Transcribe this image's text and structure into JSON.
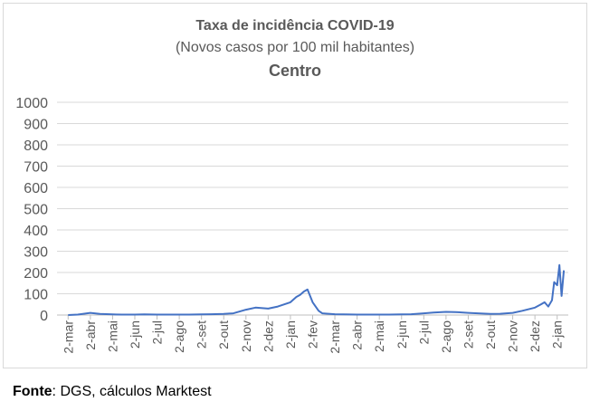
{
  "chart_data": {
    "type": "line",
    "title": "Taxa de incidência COVID-19",
    "subtitle": "(Novos casos por 100 mil habitantes)",
    "region": "Centro",
    "xlabel": "",
    "ylabel": "",
    "ylim": [
      0,
      1000
    ],
    "yticks": [
      0,
      100,
      200,
      300,
      400,
      500,
      600,
      700,
      800,
      900,
      1000
    ],
    "grid": true,
    "legend": "none",
    "line_color": "#4472C4",
    "x_tick_labels": [
      "2-mar",
      "2-abr",
      "2-mai",
      "2-jun",
      "2-jul",
      "2-ago",
      "2-set",
      "2-out",
      "2-nov",
      "2-dez",
      "2-jan",
      "2-fev",
      "2-mar",
      "2-abr",
      "2-mai",
      "2-jun",
      "2-jul",
      "2-ago",
      "2-set",
      "2-out",
      "2-nov",
      "2-dez",
      "2-jan"
    ],
    "x": [
      "2-mar",
      "15-mar",
      "2-abr",
      "15-abr",
      "2-mai",
      "15-mai",
      "2-jun",
      "15-jun",
      "2-jul",
      "15-jul",
      "2-ago",
      "15-ago",
      "2-set",
      "15-set",
      "2-out",
      "15-out",
      "2-nov",
      "15-nov",
      "2-dez",
      "15-dez",
      "2-jan",
      "10-jan",
      "15-jan",
      "20-jan",
      "25-jan",
      "2-fev",
      "10-fev",
      "15-fev",
      "2-mar",
      "15-mar",
      "2-abr",
      "15-abr",
      "2-mai",
      "15-mai",
      "2-jun",
      "15-jun",
      "2-jul",
      "15-jul",
      "2-ago",
      "15-ago",
      "2-set",
      "15-set",
      "2-out",
      "15-out",
      "2-nov",
      "15-nov",
      "2-dez",
      "10-dez",
      "15-dez",
      "20-dez",
      "25-dez",
      "28-dez",
      "2-jan",
      "5-jan",
      "8-jan",
      "11-jan"
    ],
    "values": [
      0,
      2,
      10,
      5,
      3,
      2,
      2,
      3,
      2,
      2,
      2,
      2,
      3,
      4,
      5,
      8,
      25,
      35,
      30,
      40,
      60,
      85,
      95,
      110,
      120,
      60,
      20,
      8,
      4,
      3,
      2,
      2,
      2,
      2,
      3,
      4,
      8,
      12,
      15,
      14,
      10,
      8,
      5,
      6,
      10,
      20,
      35,
      50,
      60,
      40,
      70,
      155,
      140,
      235,
      90,
      210
    ]
  },
  "source": {
    "label": "Fonte",
    "text": ": DGS, cálculos Marktest"
  }
}
